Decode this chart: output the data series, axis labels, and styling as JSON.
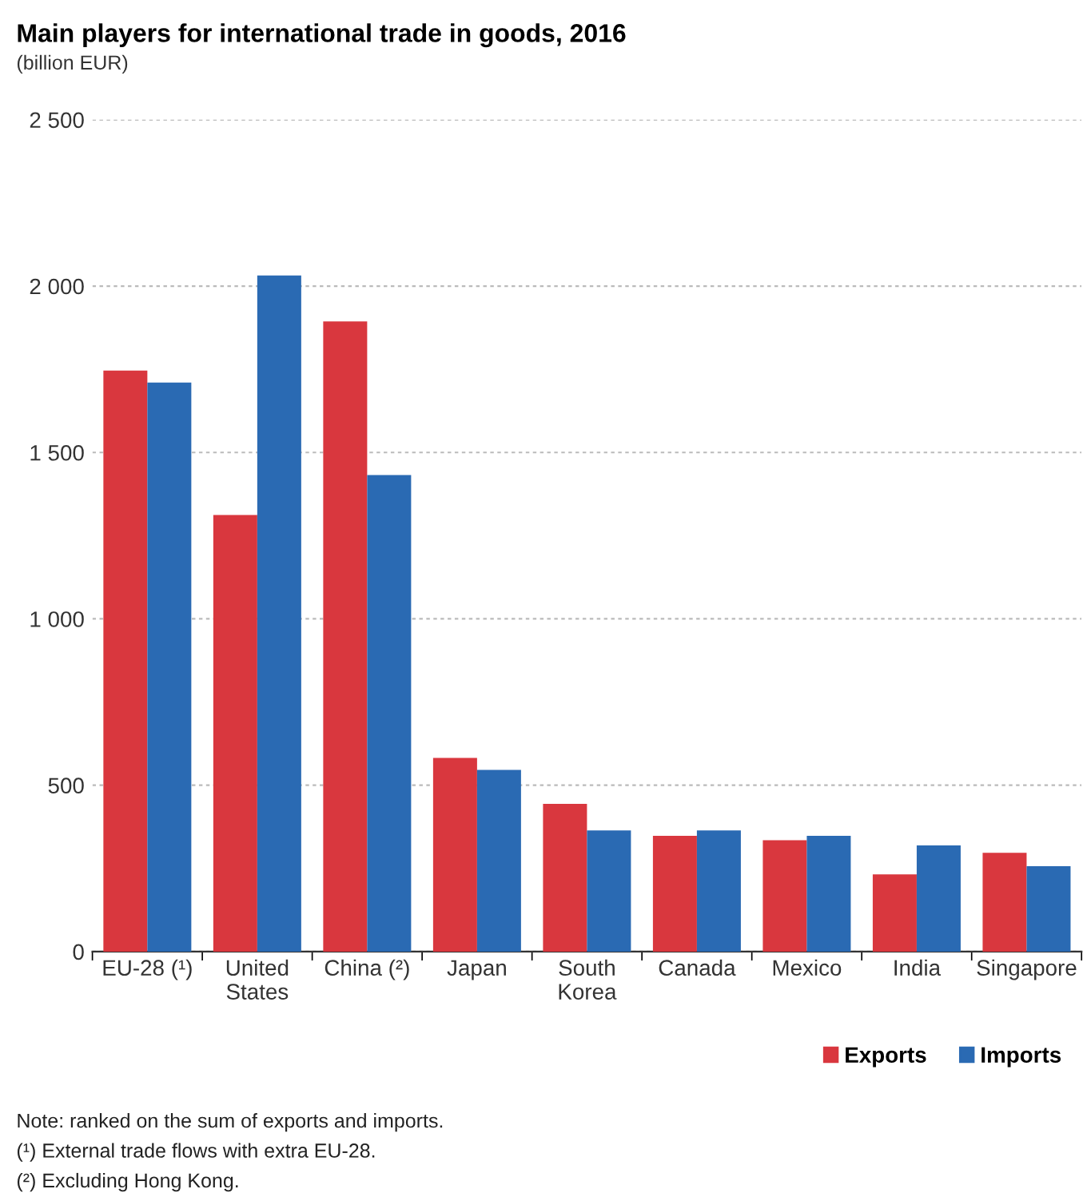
{
  "chart_data": {
    "type": "bar",
    "title": "Main players for international trade in goods, 2016",
    "subtitle": "(billion EUR)",
    "categories": [
      "EU-28 (¹)",
      "United\nStates",
      "China (²)",
      "Japan",
      "South\nKorea",
      "Canada",
      "Mexico",
      "India",
      "Singapore"
    ],
    "series": [
      {
        "name": "Exports",
        "color": "#d9373e",
        "values": [
          1746,
          1312,
          1894,
          582,
          444,
          348,
          335,
          232,
          297
        ]
      },
      {
        "name": "Imports",
        "color": "#2a6ab3",
        "values": [
          1710,
          2032,
          1432,
          546,
          364,
          364,
          348,
          319,
          257
        ]
      }
    ],
    "ylim": [
      0,
      2500
    ],
    "yticks": [
      0,
      500,
      {
        "value": 1000,
        "label": "1 000"
      },
      {
        "value": 1500,
        "label": "1 500"
      },
      {
        "value": 2000,
        "label": "2 000"
      },
      {
        "value": 2500,
        "label": "2 500"
      }
    ],
    "grid": "y",
    "legend": "bottom",
    "annotations": [
      "Note: ranked on the sum of exports and imports.",
      "(¹) External trade flows with extra EU-28.",
      "(²) Excluding Hong Kong."
    ]
  }
}
